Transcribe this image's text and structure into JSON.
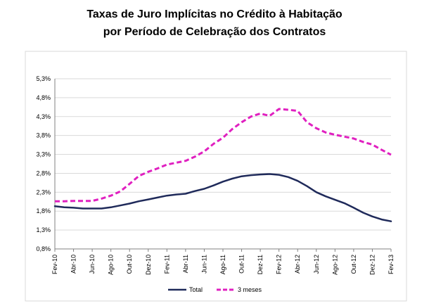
{
  "chart_data": {
    "type": "line",
    "title_line1": "Taxas de Juro Implícitas no Crédito à Habitação",
    "title_line2": "por Período de Celebração dos Contratos",
    "xlabel": "",
    "ylabel": "",
    "ylim": [
      0.8,
      5.3
    ],
    "y_ticks": [
      "0,8%",
      "1,3%",
      "1,8%",
      "2,3%",
      "2,8%",
      "3,3%",
      "3,8%",
      "4,3%",
      "4,8%",
      "5,3%"
    ],
    "x_tick_labels": [
      "Fev-10",
      "Abr-10",
      "Jun-10",
      "Ago-10",
      "Out-10",
      "Dez-10",
      "Fev-11",
      "Abr-11",
      "Jun-11",
      "Ago-11",
      "Out-11",
      "Dez-11",
      "Fev-12",
      "Abr-12",
      "Jun-12",
      "Ago-12",
      "Out-12",
      "Dez-12",
      "Fev-13"
    ],
    "grid": "horizontal",
    "legend_position": "bottom-center",
    "categories": [
      "Fev-10",
      "Mar-10",
      "Abr-10",
      "Mai-10",
      "Jun-10",
      "Jul-10",
      "Ago-10",
      "Set-10",
      "Out-10",
      "Nov-10",
      "Dez-10",
      "Jan-11",
      "Fev-11",
      "Mar-11",
      "Abr-11",
      "Mai-11",
      "Jun-11",
      "Jul-11",
      "Ago-11",
      "Set-11",
      "Out-11",
      "Nov-11",
      "Dez-11",
      "Jan-12",
      "Fev-12",
      "Mar-12",
      "Abr-12",
      "Mai-12",
      "Jun-12",
      "Jul-12",
      "Ago-12",
      "Set-12",
      "Out-12",
      "Nov-12",
      "Dez-12",
      "Jan-13",
      "Fev-13"
    ],
    "series": [
      {
        "name": "Total",
        "color": "#1f2a5a",
        "style": "solid",
        "values": [
          1.93,
          1.9,
          1.89,
          1.87,
          1.87,
          1.87,
          1.9,
          1.95,
          2.0,
          2.06,
          2.11,
          2.16,
          2.21,
          2.24,
          2.26,
          2.33,
          2.39,
          2.48,
          2.58,
          2.66,
          2.72,
          2.75,
          2.77,
          2.78,
          2.76,
          2.7,
          2.6,
          2.46,
          2.3,
          2.19,
          2.1,
          2.01,
          1.89,
          1.76,
          1.66,
          1.58,
          1.53
        ]
      },
      {
        "name": "3 meses",
        "color": "#e020c0",
        "style": "dashed",
        "values": [
          2.06,
          2.06,
          2.07,
          2.07,
          2.07,
          2.13,
          2.21,
          2.32,
          2.52,
          2.73,
          2.84,
          2.93,
          3.03,
          3.08,
          3.13,
          3.24,
          3.38,
          3.58,
          3.74,
          3.97,
          4.15,
          4.3,
          4.38,
          4.32,
          4.5,
          4.48,
          4.45,
          4.15,
          3.99,
          3.88,
          3.82,
          3.77,
          3.72,
          3.63,
          3.56,
          3.42,
          3.29
        ]
      }
    ]
  }
}
